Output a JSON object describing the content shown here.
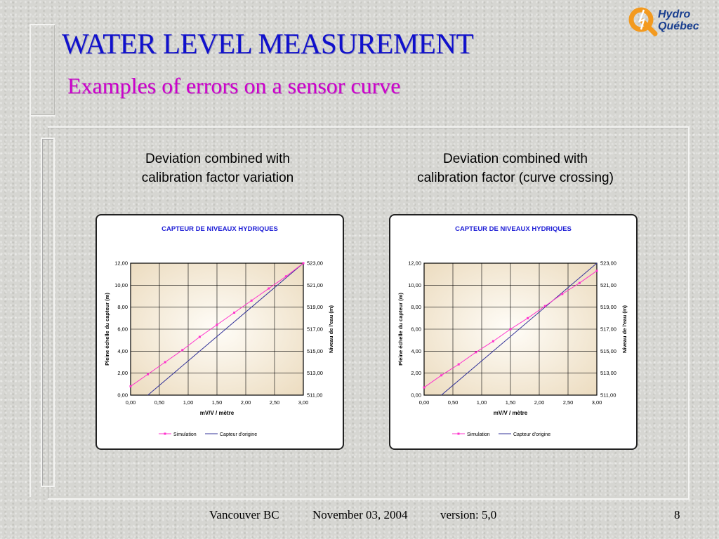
{
  "slide": {
    "title": "WATER LEVEL MEASUREMENT",
    "subtitle": "Examples of errors on a sensor curve"
  },
  "logo": {
    "line1": "Hydro",
    "line2": "Québec"
  },
  "headings": {
    "left_line1": "Deviation combined with",
    "left_line2": "calibration factor variation",
    "right_line1": "Deviation combined with",
    "right_line2": "calibration factor (curve crossing)"
  },
  "colors": {
    "title": "#1010cc",
    "subtitle": "#cc00cc",
    "chart_title": "#1f1fd6",
    "simulation": "#ff33cc",
    "original": "#333399",
    "plot_edge": "#ecdcc0",
    "plot_center": "#fffdf8"
  },
  "footer": {
    "location": "Vancouver BC",
    "date": "November 03, 2004",
    "version": "version: 5,0",
    "page": "8"
  },
  "chart_data": [
    {
      "type": "line",
      "title": "CAPTEUR DE NIVEAUX HYDRIQUES",
      "xlabel": "mV/V / mètre",
      "ylabel": "Pleine échelle du capteur (m)",
      "y2label": "Niveau de l'eau (m)",
      "xlim": [
        0,
        3
      ],
      "ylim": [
        0,
        12
      ],
      "y2lim": [
        511,
        523
      ],
      "x_ticks": [
        "0,00",
        "0,50",
        "1,00",
        "1,50",
        "2,00",
        "2,50",
        "3,00"
      ],
      "y_ticks": [
        "0,00",
        "2,00",
        "4,00",
        "6,00",
        "8,00",
        "10,00",
        "12,00"
      ],
      "y2_ticks": [
        "511,00",
        "513,00",
        "515,00",
        "517,00",
        "519,00",
        "521,00",
        "523,00"
      ],
      "grid": true,
      "legend": "bottom",
      "series": [
        {
          "name": "Simulation",
          "x": [
            0,
            0.3,
            0.6,
            0.9,
            1.2,
            1.5,
            1.8,
            2.1,
            2.4,
            2.7,
            3.0
          ],
          "y": [
            0.8,
            1.9,
            3.0,
            4.1,
            5.3,
            6.4,
            7.5,
            8.6,
            9.7,
            10.8,
            12.0
          ]
        },
        {
          "name": "Capteur d'origine",
          "x": [
            0.3,
            3.0
          ],
          "y": [
            0,
            12
          ]
        }
      ]
    },
    {
      "type": "line",
      "title": "CAPTEUR DE NIVEAUX HYDRIQUES",
      "xlabel": "mV/V / mètre",
      "ylabel": "Pleine échelle du capteur (m)",
      "y2label": "Niveau de l'eau (m)",
      "xlim": [
        0,
        3
      ],
      "ylim": [
        0,
        12
      ],
      "y2lim": [
        511,
        523
      ],
      "x_ticks": [
        "0,00",
        "0,50",
        "1,00",
        "1,50",
        "2,00",
        "2,50",
        "3,00"
      ],
      "y_ticks": [
        "0,00",
        "2,00",
        "4,00",
        "6,00",
        "8,00",
        "10,00",
        "12,00"
      ],
      "y2_ticks": [
        "511,00",
        "513,00",
        "515,00",
        "517,00",
        "519,00",
        "521,00",
        "523,00"
      ],
      "grid": true,
      "legend": "bottom",
      "series": [
        {
          "name": "Simulation",
          "x": [
            0,
            0.3,
            0.6,
            0.9,
            1.2,
            1.5,
            1.8,
            2.1,
            2.4,
            2.7,
            3.0
          ],
          "y": [
            0.7,
            1.8,
            2.8,
            3.9,
            4.9,
            6.0,
            7.0,
            8.1,
            9.2,
            10.2,
            11.3
          ]
        },
        {
          "name": "Capteur d'origine",
          "x": [
            0.3,
            3.0
          ],
          "y": [
            0,
            12
          ]
        }
      ]
    }
  ]
}
